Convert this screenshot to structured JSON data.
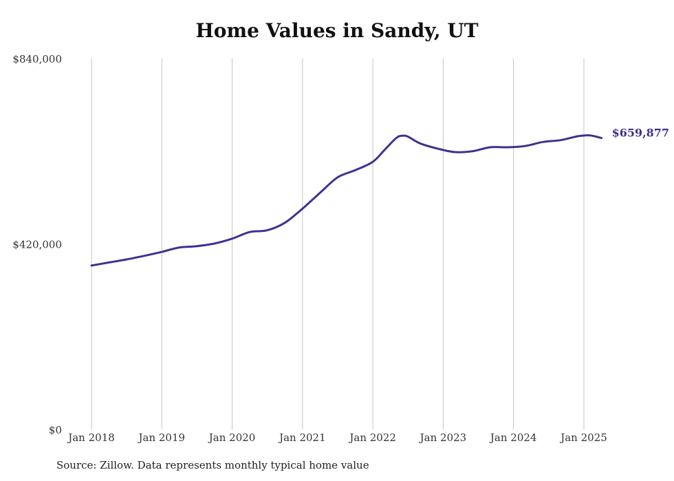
{
  "chart_data": {
    "type": "line",
    "title": "Home Values in Sandy, UT",
    "source": "Source: Zillow. Data represents monthly typical home value",
    "y_ticks": [
      {
        "value": 0,
        "label": "$0"
      },
      {
        "value": 420000,
        "label": "$420,000"
      },
      {
        "value": 840000,
        "label": "$840,000"
      }
    ],
    "ylim": [
      0,
      840000
    ],
    "x_ticks": [
      {
        "value": "2018-01",
        "label": "Jan 2018"
      },
      {
        "value": "2019-01",
        "label": "Jan 2019"
      },
      {
        "value": "2020-01",
        "label": "Jan 2020"
      },
      {
        "value": "2021-01",
        "label": "Jan 2021"
      },
      {
        "value": "2022-01",
        "label": "Jan 2022"
      },
      {
        "value": "2023-01",
        "label": "Jan 2023"
      },
      {
        "value": "2024-01",
        "label": "Jan 2024"
      },
      {
        "value": "2025-01",
        "label": "Jan 2025"
      }
    ],
    "xlim": [
      "2018-01",
      "2025-04"
    ],
    "grid": "vertical",
    "line_color": "#3d3291",
    "end_label": "$659,877",
    "series": [
      {
        "points": [
          [
            "2018-01",
            371000
          ],
          [
            "2018-04",
            378000
          ],
          [
            "2018-07",
            385000
          ],
          [
            "2018-10",
            393000
          ],
          [
            "2019-01",
            402000
          ],
          [
            "2019-04",
            412000
          ],
          [
            "2019-07",
            415000
          ],
          [
            "2019-10",
            421000
          ],
          [
            "2020-01",
            432000
          ],
          [
            "2020-04",
            447000
          ],
          [
            "2020-07",
            451000
          ],
          [
            "2020-10",
            468000
          ],
          [
            "2021-01",
            500000
          ],
          [
            "2021-04",
            536000
          ],
          [
            "2021-07",
            571000
          ],
          [
            "2021-10",
            587000
          ],
          [
            "2022-01",
            606000
          ],
          [
            "2022-03",
            633000
          ],
          [
            "2022-05",
            660000
          ],
          [
            "2022-06",
            665000
          ],
          [
            "2022-07",
            663000
          ],
          [
            "2022-09",
            648000
          ],
          [
            "2022-12",
            636000
          ],
          [
            "2023-03",
            628000
          ],
          [
            "2023-06",
            630000
          ],
          [
            "2023-09",
            639000
          ],
          [
            "2023-12",
            639000
          ],
          [
            "2024-03",
            642000
          ],
          [
            "2024-06",
            651000
          ],
          [
            "2024-09",
            655000
          ],
          [
            "2024-12",
            664000
          ],
          [
            "2025-02",
            666000
          ],
          [
            "2025-04",
            659877
          ]
        ]
      }
    ]
  }
}
